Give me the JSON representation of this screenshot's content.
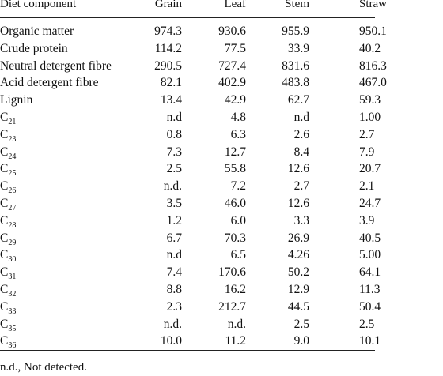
{
  "table": {
    "headers": {
      "label": "Diet component",
      "grain": "Grain",
      "leaf": "Leaf",
      "stem": "Stem",
      "straw": "Straw"
    },
    "rows": [
      {
        "label": "Organic matter",
        "grain": "974.3",
        "leaf": "930.6",
        "stem": "955.9",
        "straw": "950.1"
      },
      {
        "label": "Crude protein",
        "grain": "114.2",
        "leaf": "77.5",
        "stem": "33.9",
        "straw": "40.2"
      },
      {
        "label": "Neutral detergent fibre",
        "grain": "290.5",
        "leaf": "727.4",
        "stem": "831.6",
        "straw": "816.3"
      },
      {
        "label": "Acid detergent fibre",
        "grain": "82.1",
        "leaf": "402.9",
        "stem": "483.8",
        "straw": "467.0"
      },
      {
        "label": "Lignin",
        "grain": "13.4",
        "leaf": "42.9",
        "stem": "62.7",
        "straw": "59.3"
      },
      {
        "label_base": "C",
        "label_sub": "21",
        "grain": "n.d",
        "leaf": "4.8",
        "stem": "n.d",
        "straw": "1.00"
      },
      {
        "label_base": "C",
        "label_sub": "23",
        "grain": "0.8",
        "leaf": "6.3",
        "stem": "2.6",
        "straw": "2.7"
      },
      {
        "label_base": "C",
        "label_sub": "24",
        "grain": "7.3",
        "leaf": "12.7",
        "stem": "8.4",
        "straw": "7.9"
      },
      {
        "label_base": "C",
        "label_sub": "25",
        "grain": "2.5",
        "leaf": "55.8",
        "stem": "12.6",
        "straw": "20.7"
      },
      {
        "label_base": "C",
        "label_sub": "26",
        "grain": "n.d.",
        "leaf": "7.2",
        "stem": "2.7",
        "straw": "2.1"
      },
      {
        "label_base": "C",
        "label_sub": "27",
        "grain": "3.5",
        "leaf": "46.0",
        "stem": "12.6",
        "straw": "24.7"
      },
      {
        "label_base": "C",
        "label_sub": "28",
        "grain": "1.2",
        "leaf": "6.0",
        "stem": "3.3",
        "straw": "3.9"
      },
      {
        "label_base": "C",
        "label_sub": "29",
        "grain": "6.7",
        "leaf": "70.3",
        "stem": "26.9",
        "straw": "40.5"
      },
      {
        "label_base": "C",
        "label_sub": "30",
        "grain": "n.d",
        "leaf": "6.5",
        "stem": "4.26",
        "straw": "5.00"
      },
      {
        "label_base": "C",
        "label_sub": "31",
        "grain": "7.4",
        "leaf": "170.6",
        "stem": "50.2",
        "straw": "64.1"
      },
      {
        "label_base": "C",
        "label_sub": "32",
        "grain": "8.8",
        "leaf": "16.2",
        "stem": "12.9",
        "straw": "11.3"
      },
      {
        "label_base": "C",
        "label_sub": "33",
        "grain": "2.3",
        "leaf": "212.7",
        "stem": "44.5",
        "straw": "50.4"
      },
      {
        "label_base": "C",
        "label_sub": "35",
        "grain": "n.d.",
        "leaf": "n.d.",
        "stem": "2.5",
        "straw": "2.5"
      },
      {
        "label_base": "C",
        "label_sub": "36",
        "grain": "10.0",
        "leaf": "11.2",
        "stem": "9.0",
        "straw": "10.1"
      }
    ],
    "footnote": "n.d., Not detected."
  }
}
